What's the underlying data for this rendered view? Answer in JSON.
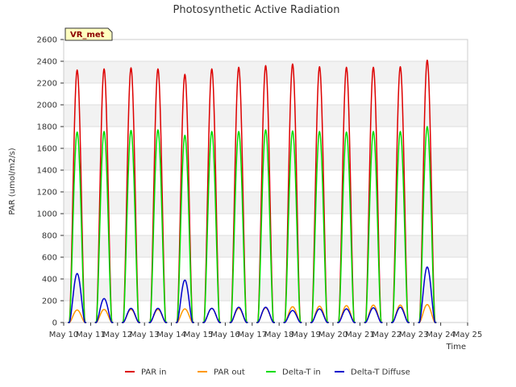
{
  "chart_data": {
    "type": "line",
    "title": "Photosynthetic Active Radiation",
    "site_label": "VR_met",
    "xlabel": "Time",
    "ylabel": "PAR (umol/m2/s)",
    "ylim": [
      0,
      2600
    ],
    "y_ticks": [
      0,
      200,
      400,
      600,
      800,
      1000,
      1200,
      1400,
      1600,
      1800,
      2000,
      2200,
      2400,
      2600
    ],
    "x_day_range": [
      10,
      25
    ],
    "x_ticks": [
      {
        "day": 10,
        "label": "May 10"
      },
      {
        "day": 11,
        "label": "May 11"
      },
      {
        "day": 12,
        "label": "May 12"
      },
      {
        "day": 13,
        "label": "May 13"
      },
      {
        "day": 14,
        "label": "May 14"
      },
      {
        "day": 15,
        "label": "May 15"
      },
      {
        "day": 16,
        "label": "May 16"
      },
      {
        "day": 17,
        "label": "May 17"
      },
      {
        "day": 18,
        "label": "May 18"
      },
      {
        "day": 19,
        "label": "May 19"
      },
      {
        "day": 20,
        "label": "May 20"
      },
      {
        "day": 21,
        "label": "May 21"
      },
      {
        "day": 22,
        "label": "May 22"
      },
      {
        "day": 23,
        "label": "May 23"
      },
      {
        "day": 24,
        "label": "May 24"
      },
      {
        "day": 25,
        "label": "May 25"
      }
    ],
    "days": [
      10.5,
      11.5,
      12.5,
      13.5,
      14.5,
      15.5,
      16.5,
      17.5,
      18.5,
      19.5,
      20.5,
      21.5,
      22.5,
      23.5
    ],
    "daily_peak_hour": 0.5,
    "daylight_half_width_days": 0.29,
    "grid": true,
    "legend_position": "bottom",
    "series": [
      {
        "name": "PAR in",
        "color": "#dd0000",
        "peaks": [
          2320,
          2330,
          2340,
          2330,
          2280,
          2330,
          2345,
          2360,
          2375,
          2350,
          2345,
          2345,
          2350,
          2410
        ]
      },
      {
        "name": "PAR out",
        "color": "#ff9900",
        "peaks": [
          115,
          120,
          120,
          120,
          125,
          130,
          130,
          135,
          145,
          150,
          155,
          160,
          160,
          165
        ]
      },
      {
        "name": "Delta-T in",
        "color": "#00dd00",
        "peaks": [
          1750,
          1755,
          1765,
          1770,
          1720,
          1755,
          1755,
          1770,
          1760,
          1755,
          1750,
          1755,
          1755,
          1800
        ]
      },
      {
        "name": "Delta-T Diffuse",
        "color": "#0000cc",
        "peaks": [
          450,
          220,
          130,
          130,
          390,
          130,
          140,
          140,
          110,
          125,
          125,
          135,
          140,
          510
        ]
      }
    ]
  }
}
